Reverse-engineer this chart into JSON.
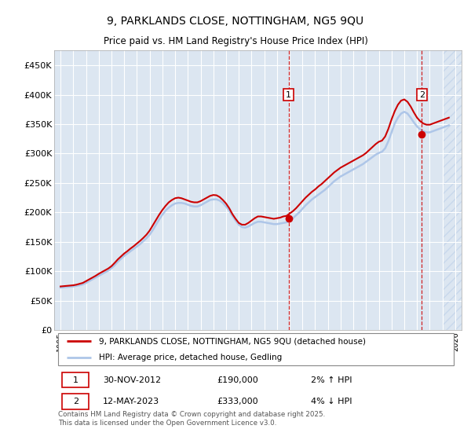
{
  "title": "9, PARKLANDS CLOSE, NOTTINGHAM, NG5 9QU",
  "subtitle": "Price paid vs. HM Land Registry's House Price Index (HPI)",
  "background_color": "#ffffff",
  "plot_bg_color": "#dce6f1",
  "grid_color": "#ffffff",
  "hatch_color": "#c8d8ec",
  "ylim": [
    0,
    475000
  ],
  "yticks": [
    0,
    50000,
    100000,
    150000,
    200000,
    250000,
    300000,
    350000,
    400000,
    450000
  ],
  "ytick_labels": [
    "£0",
    "£50K",
    "£100K",
    "£150K",
    "£200K",
    "£250K",
    "£300K",
    "£350K",
    "£400K",
    "£450K"
  ],
  "xlim_start": 1994.5,
  "xlim_end": 2026.5,
  "xtick_years": [
    1995,
    1996,
    1997,
    1998,
    1999,
    2000,
    2001,
    2002,
    2003,
    2004,
    2005,
    2006,
    2007,
    2008,
    2009,
    2010,
    2011,
    2012,
    2013,
    2014,
    2015,
    2016,
    2017,
    2018,
    2019,
    2020,
    2021,
    2022,
    2023,
    2024,
    2025,
    2026
  ],
  "hpi_line_color": "#aec6e8",
  "price_line_color": "#cc0000",
  "marker_color": "#cc0000",
  "marker1_x": 2012.92,
  "marker1_y": 190000,
  "marker2_x": 2023.37,
  "marker2_y": 333000,
  "hatch_start_x": 2025.0,
  "legend_label1": "9, PARKLANDS CLOSE, NOTTINGHAM, NG5 9QU (detached house)",
  "legend_label2": "HPI: Average price, detached house, Gedling",
  "footer_note": "Contains HM Land Registry data © Crown copyright and database right 2025.\nThis data is licensed under the Open Government Licence v3.0.",
  "transaction1_date": "30-NOV-2012",
  "transaction1_price": "£190,000",
  "transaction1_hpi": "2% ↑ HPI",
  "transaction2_date": "12-MAY-2023",
  "transaction2_price": "£333,000",
  "transaction2_hpi": "4% ↓ HPI",
  "hpi_data_x": [
    1995.0,
    1995.25,
    1995.5,
    1995.75,
    1996.0,
    1996.25,
    1996.5,
    1996.75,
    1997.0,
    1997.25,
    1997.5,
    1997.75,
    1998.0,
    1998.25,
    1998.5,
    1998.75,
    1999.0,
    1999.25,
    1999.5,
    1999.75,
    2000.0,
    2000.25,
    2000.5,
    2000.75,
    2001.0,
    2001.25,
    2001.5,
    2001.75,
    2002.0,
    2002.25,
    2002.5,
    2002.75,
    2003.0,
    2003.25,
    2003.5,
    2003.75,
    2004.0,
    2004.25,
    2004.5,
    2004.75,
    2005.0,
    2005.25,
    2005.5,
    2005.75,
    2006.0,
    2006.25,
    2006.5,
    2006.75,
    2007.0,
    2007.25,
    2007.5,
    2007.75,
    2008.0,
    2008.25,
    2008.5,
    2008.75,
    2009.0,
    2009.25,
    2009.5,
    2009.75,
    2010.0,
    2010.25,
    2010.5,
    2010.75,
    2011.0,
    2011.25,
    2011.5,
    2011.75,
    2012.0,
    2012.25,
    2012.5,
    2012.75,
    2013.0,
    2013.25,
    2013.5,
    2013.75,
    2014.0,
    2014.25,
    2014.5,
    2014.75,
    2015.0,
    2015.25,
    2015.5,
    2015.75,
    2016.0,
    2016.25,
    2016.5,
    2016.75,
    2017.0,
    2017.25,
    2017.5,
    2017.75,
    2018.0,
    2018.25,
    2018.5,
    2018.75,
    2019.0,
    2019.25,
    2019.5,
    2019.75,
    2020.0,
    2020.25,
    2020.5,
    2020.75,
    2021.0,
    2021.25,
    2021.5,
    2021.75,
    2022.0,
    2022.25,
    2022.5,
    2022.75,
    2023.0,
    2023.25,
    2023.5,
    2023.75,
    2024.0,
    2024.25,
    2024.5,
    2024.75,
    2025.0,
    2025.25,
    2025.5
  ],
  "hpi_data_y": [
    72000,
    72500,
    73000,
    73500,
    74000,
    75000,
    76000,
    77500,
    80000,
    83000,
    86000,
    89000,
    92000,
    95000,
    98000,
    101000,
    105000,
    110000,
    116000,
    121000,
    126000,
    130000,
    134000,
    138000,
    142000,
    146000,
    151000,
    156000,
    162000,
    170000,
    179000,
    188000,
    196000,
    203000,
    208000,
    212000,
    215000,
    216000,
    216000,
    215000,
    213000,
    211000,
    210000,
    210000,
    212000,
    215000,
    218000,
    221000,
    222000,
    222000,
    220000,
    216000,
    210000,
    203000,
    194000,
    186000,
    179000,
    175000,
    174000,
    176000,
    179000,
    182000,
    184000,
    184000,
    183000,
    182000,
    181000,
    180000,
    180000,
    181000,
    182000,
    183000,
    186000,
    190000,
    195000,
    200000,
    206000,
    212000,
    217000,
    222000,
    226000,
    230000,
    234000,
    238000,
    243000,
    248000,
    253000,
    257000,
    261000,
    264000,
    267000,
    270000,
    273000,
    276000,
    279000,
    282000,
    286000,
    290000,
    294000,
    298000,
    301000,
    303000,
    309000,
    321000,
    336000,
    351000,
    361000,
    368000,
    371000,
    368000,
    361000,
    353000,
    346000,
    341000,
    338000,
    336000,
    336000,
    338000,
    340000,
    342000,
    344000,
    346000,
    348000
  ],
  "price_data_x": [
    1995.0,
    1995.25,
    1995.5,
    1995.75,
    1996.0,
    1996.25,
    1996.5,
    1996.75,
    1997.0,
    1997.25,
    1997.5,
    1997.75,
    1998.0,
    1998.25,
    1998.5,
    1998.75,
    1999.0,
    1999.25,
    1999.5,
    1999.75,
    2000.0,
    2000.25,
    2000.5,
    2000.75,
    2001.0,
    2001.25,
    2001.5,
    2001.75,
    2002.0,
    2002.25,
    2002.5,
    2002.75,
    2003.0,
    2003.25,
    2003.5,
    2003.75,
    2004.0,
    2004.25,
    2004.5,
    2004.75,
    2005.0,
    2005.25,
    2005.5,
    2005.75,
    2006.0,
    2006.25,
    2006.5,
    2006.75,
    2007.0,
    2007.25,
    2007.5,
    2007.75,
    2008.0,
    2008.25,
    2008.5,
    2008.75,
    2009.0,
    2009.25,
    2009.5,
    2009.75,
    2010.0,
    2010.25,
    2010.5,
    2010.75,
    2011.0,
    2011.25,
    2011.5,
    2011.75,
    2012.0,
    2012.25,
    2012.5,
    2012.75,
    2013.0,
    2013.25,
    2013.5,
    2013.75,
    2014.0,
    2014.25,
    2014.5,
    2014.75,
    2015.0,
    2015.25,
    2015.5,
    2015.75,
    2016.0,
    2016.25,
    2016.5,
    2016.75,
    2017.0,
    2017.25,
    2017.5,
    2017.75,
    2018.0,
    2018.25,
    2018.5,
    2018.75,
    2019.0,
    2019.25,
    2019.5,
    2019.75,
    2020.0,
    2020.25,
    2020.5,
    2020.75,
    2021.0,
    2021.25,
    2021.5,
    2021.75,
    2022.0,
    2022.25,
    2022.5,
    2022.75,
    2023.0,
    2023.25,
    2023.5,
    2023.75,
    2024.0,
    2024.25,
    2024.5,
    2024.75,
    2025.0,
    2025.25,
    2025.5
  ],
  "price_data_y": [
    74000,
    74500,
    75000,
    75500,
    76000,
    77000,
    78500,
    80000,
    83000,
    86000,
    89000,
    92000,
    95500,
    98500,
    101500,
    104500,
    108500,
    114000,
    120000,
    125000,
    130000,
    134000,
    138500,
    142500,
    147000,
    151500,
    156500,
    162000,
    169000,
    178000,
    187000,
    196000,
    204000,
    211000,
    217000,
    221000,
    224000,
    225000,
    224000,
    222000,
    220000,
    218000,
    217000,
    217000,
    219000,
    222000,
    225000,
    228000,
    229500,
    229000,
    226000,
    221000,
    215000,
    207000,
    197000,
    189000,
    182000,
    179000,
    179000,
    182000,
    186000,
    190000,
    193000,
    193000,
    192000,
    191000,
    190000,
    189000,
    190000,
    191000,
    193000,
    194000,
    198000,
    202000,
    207000,
    213000,
    219000,
    225000,
    230000,
    235000,
    239000,
    244000,
    248000,
    253000,
    258000,
    263000,
    268000,
    272000,
    276000,
    279000,
    282000,
    285000,
    288000,
    291000,
    294000,
    297000,
    301000,
    306000,
    311000,
    316000,
    320000,
    322000,
    329000,
    342000,
    358000,
    372000,
    383000,
    390000,
    392000,
    388000,
    380000,
    370000,
    361000,
    355000,
    351000,
    349000,
    349000,
    351000,
    353000,
    355000,
    357000,
    359000,
    361000
  ]
}
